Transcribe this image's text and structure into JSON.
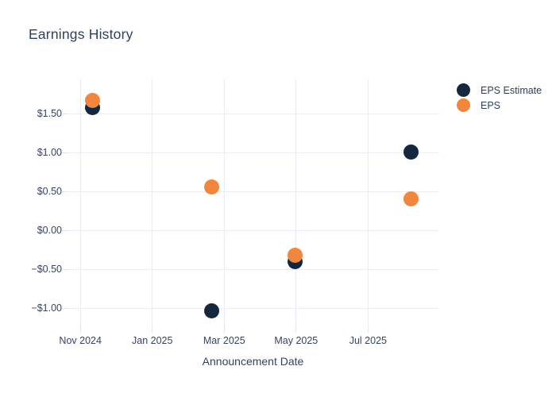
{
  "chart": {
    "title": "Earnings History"
  },
  "chart_data": {
    "type": "scatter",
    "title": "Earnings History",
    "xlabel": "Announcement Date",
    "ylabel": "",
    "grid": true,
    "legend_position": "right-top-outside",
    "x_axis": {
      "unit": "months since 2024-11-01",
      "range": [
        -0.38,
        9.98
      ],
      "ticks": [
        {
          "label": "Nov 2024",
          "m": 0
        },
        {
          "label": "Jan 2025",
          "m": 2
        },
        {
          "label": "Mar 2025",
          "m": 4
        },
        {
          "label": "May 2025",
          "m": 6
        },
        {
          "label": "Jul 2025",
          "m": 8
        }
      ]
    },
    "y_axis": {
      "unit": "USD per share",
      "range": [
        -1.25,
        1.94
      ],
      "ticks": [
        {
          "label": "$1.50",
          "v": 1.5
        },
        {
          "label": "$1.00",
          "v": 1.0
        },
        {
          "label": "$0.50",
          "v": 0.5
        },
        {
          "label": "$0.00",
          "v": 0.0
        },
        {
          "label": "−$0.50",
          "v": -0.5
        },
        {
          "label": "−$1.00",
          "v": -1.0
        }
      ]
    },
    "series": [
      {
        "name": "EPS Estimate",
        "color": "#14273f",
        "points": [
          {
            "date_approx": "2024-11-11",
            "m": 0.33,
            "value": 1.58
          },
          {
            "date_approx": "2025-02-19",
            "m": 3.65,
            "value": -1.03
          },
          {
            "date_approx": "2025-04-30",
            "m": 5.96,
            "value": -0.4
          },
          {
            "date_approx": "2025-08-06",
            "m": 9.19,
            "value": 1.01
          }
        ]
      },
      {
        "name": "EPS",
        "color": "#f2863c",
        "points": [
          {
            "date_approx": "2024-11-11",
            "m": 0.33,
            "value": 1.67
          },
          {
            "date_approx": "2025-02-19",
            "m": 3.65,
            "value": 0.56
          },
          {
            "date_approx": "2025-04-30",
            "m": 5.96,
            "value": -0.32
          },
          {
            "date_approx": "2025-08-06",
            "m": 9.19,
            "value": 0.41
          }
        ]
      }
    ]
  },
  "colors": {
    "title_text": "#2d3f5e",
    "tick_text": "#37445f",
    "gridline": "#e9edf5",
    "background": "#ffffff"
  }
}
